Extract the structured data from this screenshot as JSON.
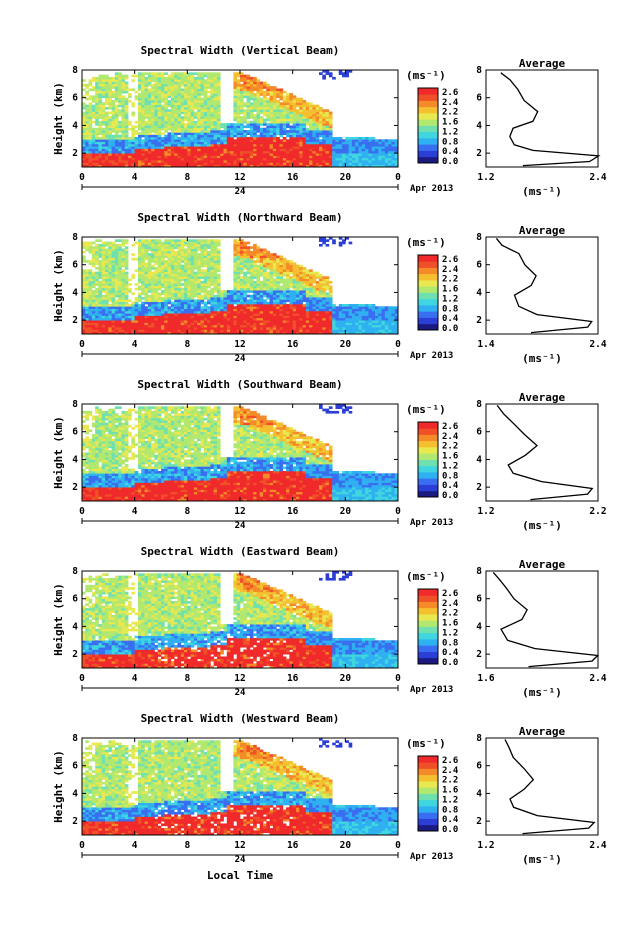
{
  "figure": {
    "common": {
      "x_ticks": [
        "0",
        "4",
        "8",
        "12",
        "16",
        "20",
        "0"
      ],
      "y_ticks": [
        "2",
        "4",
        "6",
        "8"
      ],
      "date_day": "24",
      "month_year": "Apr 2013",
      "ylabel": "Height (km)",
      "colorbar_unit": "(ms⁻¹)",
      "avg_title": "Average",
      "avg_unit": "(ms⁻¹)",
      "avg_y_ticks": [
        "2",
        "4",
        "6",
        "8"
      ],
      "xlabel_bottom": "Local Time"
    },
    "colors": {
      "colormap": [
        "#1a1a80",
        "#2b3fd6",
        "#3a6ef0",
        "#2fb0f0",
        "#3fd6e0",
        "#6fe0b0",
        "#b0e870",
        "#e8e850",
        "#f5c030",
        "#f58a28",
        "#f05028",
        "#f02a2a"
      ]
    }
  },
  "chart_data": [
    {
      "type": "heatmap",
      "title": "Spectral Width (Vertical Beam)",
      "x_range": [
        0,
        24
      ],
      "y_range": [
        1,
        8
      ],
      "colorbar": {
        "ticks": [
          "2.6",
          "2.4",
          "2.2",
          "1.6",
          "1.2",
          "0.8",
          "0.4",
          "0.0"
        ]
      },
      "average": {
        "x_ticks": [
          "1.2",
          "2.4"
        ],
        "x_range": [
          1.2,
          2.4
        ],
        "y_range": [
          1,
          8
        ],
        "profile": [
          [
            1.6,
            1.1
          ],
          [
            2.3,
            1.4
          ],
          [
            2.4,
            1.8
          ],
          [
            1.7,
            2.2
          ],
          [
            1.5,
            2.6
          ],
          [
            1.45,
            3.2
          ],
          [
            1.5,
            3.8
          ],
          [
            1.7,
            4.3
          ],
          [
            1.75,
            5.0
          ],
          [
            1.6,
            5.8
          ],
          [
            1.55,
            6.6
          ],
          [
            1.45,
            7.3
          ],
          [
            1.35,
            7.8
          ]
        ]
      }
    },
    {
      "type": "heatmap",
      "title": "Spectral Width (Northward Beam)",
      "x_range": [
        0,
        24
      ],
      "y_range": [
        1,
        8
      ],
      "colorbar": {
        "ticks": [
          "2.6",
          "2.4",
          "2.2",
          "1.6",
          "1.2",
          "0.8",
          "0.4",
          "0.0"
        ]
      },
      "average": {
        "x_ticks": [
          "1.4",
          "2.4"
        ],
        "x_range": [
          1.4,
          2.4
        ],
        "y_range": [
          1,
          8
        ],
        "profile": [
          [
            1.8,
            1.1
          ],
          [
            2.3,
            1.5
          ],
          [
            2.35,
            1.9
          ],
          [
            1.85,
            2.4
          ],
          [
            1.7,
            3.0
          ],
          [
            1.65,
            3.8
          ],
          [
            1.8,
            4.5
          ],
          [
            1.85,
            5.2
          ],
          [
            1.75,
            6.0
          ],
          [
            1.7,
            6.8
          ],
          [
            1.55,
            7.4
          ],
          [
            1.5,
            7.9
          ]
        ]
      }
    },
    {
      "type": "heatmap",
      "title": "Spectral Width (Southward Beam)",
      "x_range": [
        0,
        24
      ],
      "y_range": [
        1,
        8
      ],
      "colorbar": {
        "ticks": [
          "2.6",
          "2.4",
          "2.2",
          "1.6",
          "1.2",
          "0.8",
          "0.4",
          "0.0"
        ]
      },
      "average": {
        "x_ticks": [
          "1.2",
          "2.2"
        ],
        "x_range": [
          1.2,
          2.2
        ],
        "y_range": [
          1,
          8
        ],
        "profile": [
          [
            1.6,
            1.1
          ],
          [
            2.1,
            1.5
          ],
          [
            2.15,
            1.9
          ],
          [
            1.7,
            2.4
          ],
          [
            1.45,
            3.0
          ],
          [
            1.4,
            3.6
          ],
          [
            1.55,
            4.3
          ],
          [
            1.65,
            5.0
          ],
          [
            1.55,
            5.8
          ],
          [
            1.45,
            6.6
          ],
          [
            1.35,
            7.3
          ],
          [
            1.3,
            7.9
          ]
        ]
      }
    },
    {
      "type": "heatmap",
      "title": "Spectral Width (Eastward Beam)",
      "x_range": [
        0,
        24
      ],
      "y_range": [
        1,
        8
      ],
      "colorbar": {
        "ticks": [
          "2.6",
          "2.4",
          "2.2",
          "1.6",
          "1.2",
          "0.8",
          "0.4",
          "0.0"
        ]
      },
      "average": {
        "x_ticks": [
          "1.6",
          "2.4"
        ],
        "x_range": [
          1.6,
          2.4
        ],
        "y_range": [
          1,
          8
        ],
        "profile": [
          [
            1.9,
            1.1
          ],
          [
            2.35,
            1.5
          ],
          [
            2.4,
            1.9
          ],
          [
            1.95,
            2.4
          ],
          [
            1.75,
            3.0
          ],
          [
            1.7,
            3.8
          ],
          [
            1.85,
            4.5
          ],
          [
            1.9,
            5.2
          ],
          [
            1.8,
            6.0
          ],
          [
            1.75,
            6.8
          ],
          [
            1.7,
            7.4
          ],
          [
            1.65,
            7.9
          ]
        ]
      }
    },
    {
      "type": "heatmap",
      "title": "Spectral Width (Westward Beam)",
      "x_range": [
        0,
        24
      ],
      "y_range": [
        1,
        8
      ],
      "colorbar": {
        "ticks": [
          "2.6",
          "2.4",
          "2.2",
          "1.6",
          "1.2",
          "0.8",
          "0.4",
          "0.0"
        ]
      },
      "average": {
        "x_ticks": [
          "1.2",
          "2.4"
        ],
        "x_range": [
          1.2,
          2.4
        ],
        "y_range": [
          1,
          8
        ],
        "profile": [
          [
            1.6,
            1.1
          ],
          [
            2.3,
            1.5
          ],
          [
            2.35,
            1.9
          ],
          [
            1.75,
            2.4
          ],
          [
            1.5,
            3.0
          ],
          [
            1.45,
            3.6
          ],
          [
            1.6,
            4.3
          ],
          [
            1.7,
            5.0
          ],
          [
            1.6,
            5.8
          ],
          [
            1.5,
            6.6
          ],
          [
            1.45,
            7.3
          ],
          [
            1.4,
            7.9
          ]
        ]
      }
    }
  ]
}
